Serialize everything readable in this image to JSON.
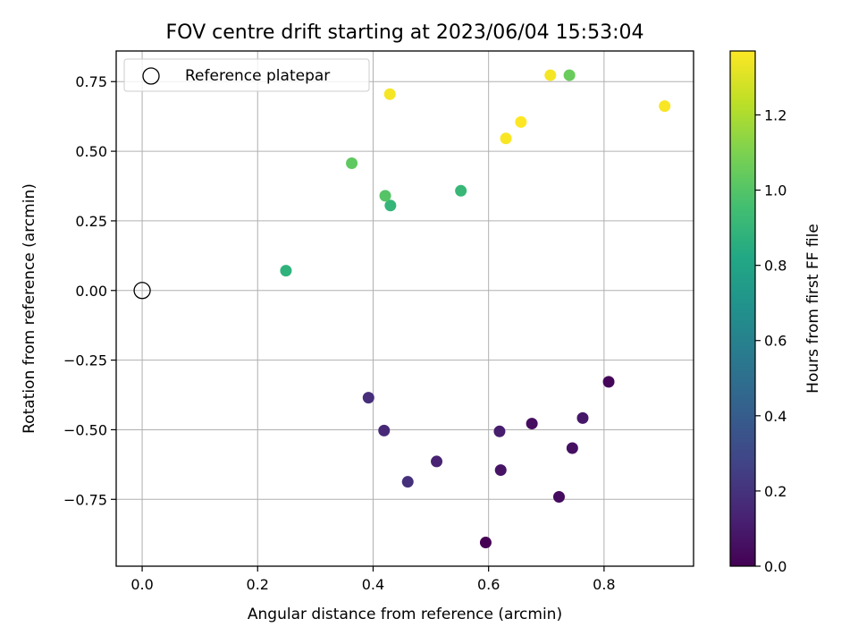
{
  "chart_data": {
    "type": "scatter",
    "title": "FOV centre drift starting at 2023/06/04 15:53:04",
    "xlabel": "Angular distance from reference (arcmin)",
    "ylabel": "Rotation from reference (arcmin)",
    "xlim": [
      -0.045,
      0.955
    ],
    "ylim": [
      -0.99,
      0.86
    ],
    "xticks": [
      0.0,
      0.2,
      0.4,
      0.6,
      0.8
    ],
    "xtick_labels": [
      "0.0",
      "0.2",
      "0.4",
      "0.6",
      "0.8"
    ],
    "yticks": [
      -0.75,
      -0.5,
      -0.25,
      0.0,
      0.25,
      0.5,
      0.75
    ],
    "ytick_labels": [
      "−0.75",
      "−0.50",
      "−0.25",
      "0.00",
      "0.25",
      "0.50",
      "0.75"
    ],
    "grid": true,
    "legend": {
      "placement": "top-left",
      "entries": [
        "Reference platepar"
      ]
    },
    "reference_point": {
      "x": 0.0,
      "y": 0.0
    },
    "colorbar": {
      "label": "Hours from first FF file",
      "colormap": "viridis",
      "range": [
        0.0,
        1.37
      ],
      "ticks": [
        0.0,
        0.2,
        0.4,
        0.6,
        0.8,
        1.0,
        1.2
      ],
      "tick_labels": [
        "0.0",
        "0.2",
        "0.4",
        "0.6",
        "0.8",
        "1.0",
        "1.2"
      ]
    },
    "points": [
      {
        "x": 0.595,
        "y": -0.905,
        "hours": 0.0
      },
      {
        "x": 0.808,
        "y": -0.328,
        "hours": 0.02
      },
      {
        "x": 0.722,
        "y": -0.741,
        "hours": 0.04
      },
      {
        "x": 0.675,
        "y": -0.478,
        "hours": 0.05
      },
      {
        "x": 0.745,
        "y": -0.566,
        "hours": 0.06
      },
      {
        "x": 0.621,
        "y": -0.645,
        "hours": 0.07
      },
      {
        "x": 0.763,
        "y": -0.458,
        "hours": 0.09
      },
      {
        "x": 0.619,
        "y": -0.506,
        "hours": 0.11
      },
      {
        "x": 0.51,
        "y": -0.614,
        "hours": 0.13
      },
      {
        "x": 0.419,
        "y": -0.503,
        "hours": 0.16
      },
      {
        "x": 0.392,
        "y": -0.385,
        "hours": 0.18
      },
      {
        "x": 0.46,
        "y": -0.687,
        "hours": 0.19
      },
      {
        "x": 0.249,
        "y": 0.071,
        "hours": 0.88
      },
      {
        "x": 0.43,
        "y": 0.305,
        "hours": 0.9
      },
      {
        "x": 0.552,
        "y": 0.358,
        "hours": 0.91
      },
      {
        "x": 0.421,
        "y": 0.34,
        "hours": 1.0
      },
      {
        "x": 0.363,
        "y": 0.457,
        "hours": 1.03
      },
      {
        "x": 0.74,
        "y": 0.773,
        "hours": 1.05
      },
      {
        "x": 0.429,
        "y": 0.705,
        "hours": 1.35
      },
      {
        "x": 0.707,
        "y": 0.773,
        "hours": 1.35
      },
      {
        "x": 0.905,
        "y": 0.662,
        "hours": 1.36
      },
      {
        "x": 0.63,
        "y": 0.546,
        "hours": 1.36
      },
      {
        "x": 0.656,
        "y": 0.605,
        "hours": 1.37
      }
    ]
  }
}
